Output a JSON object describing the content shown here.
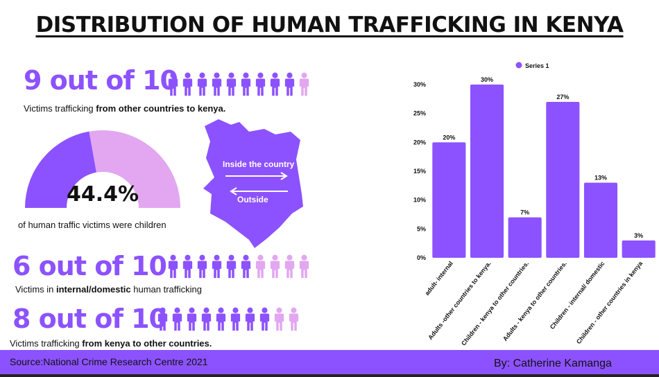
{
  "title": "DISTRIBUTION OF HUMAN TRAFFICKING IN KENYA",
  "colors": {
    "accent": "#8c52ff",
    "light": "#e2a7f0",
    "text": "#111111"
  },
  "stats": [
    {
      "headline": "9 out of 10",
      "filled": 9,
      "total": 10,
      "caption_pre": "Victims trafficking ",
      "caption_bold": "from other countries to kenya.",
      "caption_post": ""
    },
    {
      "headline": "6 out of 10",
      "filled": 6,
      "total": 10,
      "caption_pre": "Victims in ",
      "caption_bold": "internal/domestic",
      "caption_post": " human trafficking"
    },
    {
      "headline": "8 out of 10",
      "filled": 8,
      "total": 10,
      "caption_pre": "Victims trafficking ",
      "caption_bold": "from kenya to other countries.",
      "caption_post": ""
    }
  ],
  "gauge": {
    "value": "44.4%",
    "fraction": 0.444,
    "caption": "of human traffic victims were children"
  },
  "map": {
    "label_inside": "Inside the country",
    "label_outside": "Outside"
  },
  "chart_data": {
    "type": "bar",
    "categories": [
      "adult- internal",
      "Adults -other countries to kenya.",
      "Children - kenya to other countries.",
      "Adults - kenya to other countries.",
      "Children - internal/ domestic",
      "Children - other countries in kenya"
    ],
    "series": [
      {
        "name": "Series 1",
        "values": [
          20,
          30,
          7,
          27,
          13,
          3
        ]
      }
    ],
    "value_labels": [
      "20%",
      "30%",
      "7%",
      "27%",
      "13%",
      "3%"
    ],
    "yticks": [
      "0%",
      "5%",
      "10%",
      "15%",
      "20%",
      "25%",
      "30%"
    ],
    "ylim": [
      0,
      30
    ],
    "legend": "top",
    "grid": false,
    "bar_color": "#8c52ff"
  },
  "footer": {
    "source": "Source:National Crime Research Centre  2021",
    "author": "By: Catherine Kamanga"
  }
}
